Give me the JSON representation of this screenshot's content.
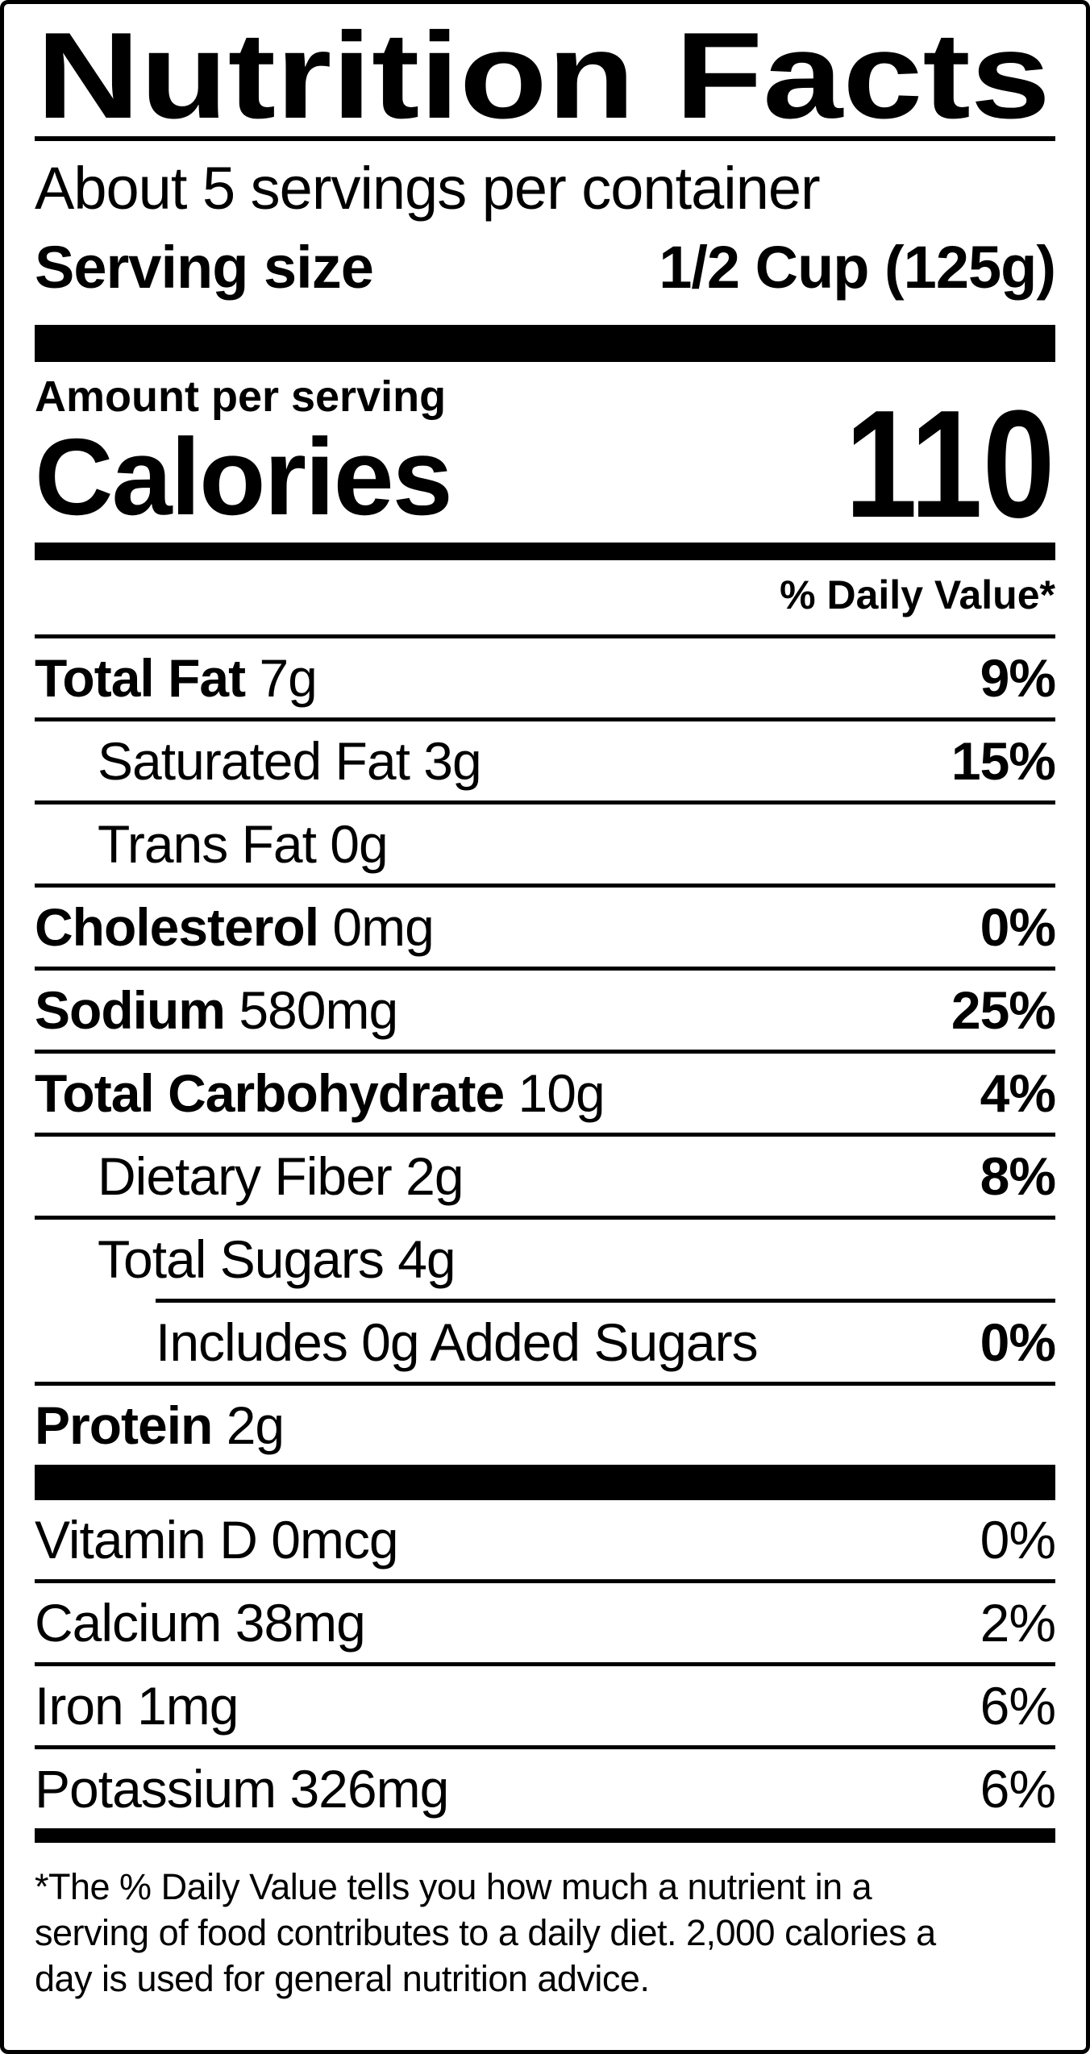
{
  "label": {
    "title": "Nutrition Facts",
    "servings_per_container": "About 5 servings per container",
    "serving_size": {
      "label": "Serving size",
      "value": "1/2 Cup (125g)"
    },
    "amount_per_serving": "Amount per serving",
    "calories": {
      "label": "Calories",
      "value": "110"
    },
    "daily_value_header": "% Daily Value*",
    "nutrients": {
      "total_fat": {
        "label": "Total Fat",
        "amount": "7g",
        "daily_value": "9%"
      },
      "saturated_fat": {
        "label": "Saturated Fat",
        "amount": "3g",
        "daily_value": "15%"
      },
      "trans_fat": {
        "label": "Trans Fat",
        "amount": "0g",
        "daily_value": ""
      },
      "cholesterol": {
        "label": "Cholesterol",
        "amount": "0mg",
        "daily_value": "0%"
      },
      "sodium": {
        "label": "Sodium",
        "amount": "580mg",
        "daily_value": "25%"
      },
      "total_carbohydrate": {
        "label": "Total Carbohydrate",
        "amount": "10g",
        "daily_value": "4%"
      },
      "dietary_fiber": {
        "label": "Dietary Fiber",
        "amount": "2g",
        "daily_value": "8%"
      },
      "total_sugars": {
        "label": "Total Sugars",
        "amount": "4g",
        "daily_value": ""
      },
      "added_sugars": {
        "label": "Includes 0g Added Sugars",
        "amount": "",
        "daily_value": "0%"
      },
      "protein": {
        "label": "Protein",
        "amount": "2g",
        "daily_value": ""
      }
    },
    "micronutrients": {
      "vitamin_d": {
        "label": "Vitamin D",
        "amount": "0mcg",
        "daily_value": "0%"
      },
      "calcium": {
        "label": "Calcium",
        "amount": "38mg",
        "daily_value": "2%"
      },
      "iron": {
        "label": "Iron",
        "amount": "1mg",
        "daily_value": "6%"
      },
      "potassium": {
        "label": "Potassium",
        "amount": "326mg",
        "daily_value": "6%"
      }
    },
    "footnote_lines": [
      "*The % Daily Value tells you how much a nutrient in a",
      "serving of food contributes to a daily diet. 2,000 calories a",
      "day is used for general nutrition advice."
    ],
    "colors": {
      "ink": "#000000",
      "background": "#ffffff"
    }
  }
}
